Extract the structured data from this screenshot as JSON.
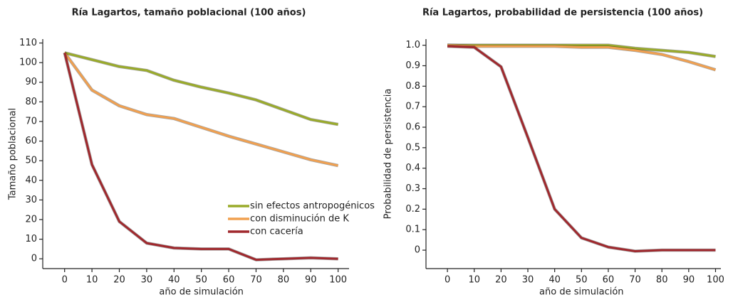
{
  "chart_data": [
    {
      "type": "line",
      "title": "Ría Lagartos, tamaño poblacional (100 años)",
      "y_label": "Tamaño poblacional",
      "x_label": "año de simulación",
      "x": [
        0,
        10,
        20,
        30,
        40,
        50,
        60,
        70,
        80,
        90,
        100
      ],
      "xlim": [
        -8,
        104
      ],
      "xticks": [
        0,
        10,
        20,
        30,
        40,
        50,
        60,
        70,
        80,
        90,
        100
      ],
      "ylim": [
        -5,
        112
      ],
      "yticks": [
        0,
        10,
        20,
        30,
        40,
        50,
        60,
        70,
        80,
        90,
        100,
        110
      ],
      "legend": "lower right",
      "series": [
        {
          "name": "sin efectos antropogénicos",
          "color": "#9aab2a",
          "values": [
            105,
            101.5,
            98,
            96,
            91,
            87.5,
            84.5,
            81,
            76,
            71,
            68.5
          ]
        },
        {
          "name": "con disminución de K",
          "color": "#f0a050",
          "values": [
            105,
            86,
            78,
            73.5,
            71.5,
            67,
            62.5,
            58.5,
            54.5,
            50.5,
            47.5
          ]
        },
        {
          "name": "con cacería",
          "color": "#a0282d",
          "values": [
            105,
            48,
            19,
            8,
            5.5,
            5,
            5,
            -0.5,
            0,
            0.5,
            0
          ]
        }
      ]
    },
    {
      "type": "line",
      "title": "Ría Lagartos, probabilidad de persistencia (100 años)",
      "y_label": "Probabilidad de persistencia",
      "x_label": "año de simulación",
      "x": [
        0,
        10,
        20,
        30,
        40,
        50,
        60,
        70,
        80,
        90,
        100
      ],
      "xlim": [
        -8,
        102
      ],
      "xticks": [
        0,
        10,
        20,
        30,
        40,
        50,
        60,
        70,
        80,
        90,
        100
      ],
      "ylim": [
        -0.09,
        1.03
      ],
      "yticks": [
        0,
        0.1,
        0.2,
        0.3,
        0.4,
        0.5,
        0.6,
        0.7,
        0.8,
        0.9,
        {
          "value": 1,
          "label": "1.0"
        }
      ],
      "series": [
        {
          "color": "#9aab2a",
          "values": [
            1,
            1,
            1,
            1,
            1,
            1,
            1,
            0.985,
            0.975,
            0.965,
            0.945
          ]
        },
        {
          "color": "#f0a050",
          "values": [
            1,
            0.995,
            0.995,
            0.995,
            0.995,
            0.99,
            0.99,
            0.975,
            0.955,
            0.92,
            0.88
          ]
        },
        {
          "color": "#a0282d",
          "values": [
            0.995,
            0.99,
            0.895,
            0.55,
            0.2,
            0.06,
            0.015,
            -0.005,
            0,
            0,
            0
          ]
        }
      ]
    }
  ]
}
